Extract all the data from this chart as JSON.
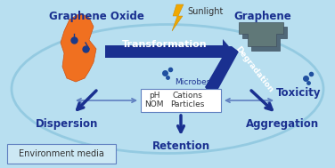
{
  "bg_color": "#b8dff0",
  "graphene_oxide_label": "Graphene Oxide",
  "graphene_label": "Graphene",
  "sunlight_label": "Sunlight",
  "transformation_label": "Transformation",
  "degradation_label": "Degradation",
  "microbes_label": "Microbes",
  "dispersion_label": "Dispersion",
  "aggregation_label": "Aggregation",
  "toxicity_label": "Toxicity",
  "retention_label": "Retention",
  "env_media_label": "Environment media",
  "ph_label": "pH",
  "cations_label": "Cations",
  "nom_label": "NOM",
  "particles_label": "Particles",
  "arrow_color": "#1a3090",
  "arrow_color_light": "#6080c0",
  "text_color": "#1a3090",
  "go_color": "#f07020",
  "graphene_color": "#607878",
  "ellipse_color": "#90c8e0",
  "box_color": "#cce8f4",
  "white": "#ffffff"
}
